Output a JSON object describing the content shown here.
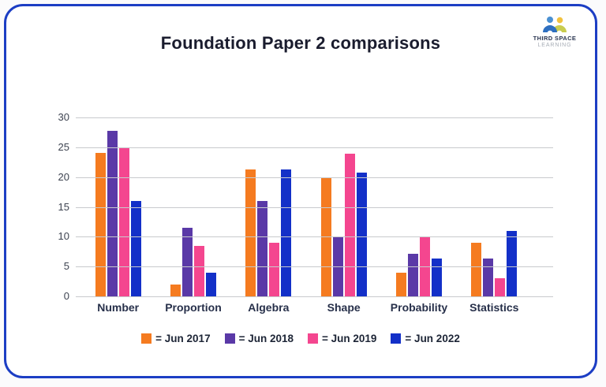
{
  "page": {
    "background": "#fbfbfc",
    "card_border_color": "#1c3ec4"
  },
  "header": {
    "title": "Foundation Paper 2 comparisons"
  },
  "logo": {
    "line1": "THIRD SPACE",
    "line2": "LEARNING",
    "person_left_head_color": "#4a90d2",
    "person_left_body_color": "#2e6fc0",
    "person_right_head_color": "#f2c23e",
    "person_right_body_color": "#c9cc4f"
  },
  "chart_data": {
    "type": "bar",
    "title": "Foundation Paper 2 comparisons",
    "categories": [
      "Number",
      "Proportion",
      "Algebra",
      "Shape",
      "Probability",
      "Statistics"
    ],
    "series": [
      {
        "name": "Jun 2017",
        "color": "#f57b20",
        "values": [
          24,
          2,
          21.3,
          20,
          4,
          9
        ]
      },
      {
        "name": "Jun 2018",
        "color": "#5a39a7",
        "values": [
          27.7,
          11.5,
          16,
          10,
          7.2,
          6.3
        ]
      },
      {
        "name": "Jun 2019",
        "color": "#f4468f",
        "values": [
          25,
          8.5,
          9,
          23.9,
          10,
          3
        ]
      },
      {
        "name": "Jun 2022",
        "color": "#1330c8",
        "values": [
          16,
          4,
          21.3,
          20.8,
          6.3,
          11
        ]
      }
    ],
    "ylim": [
      0,
      30
    ],
    "yticks": [
      30,
      25,
      20,
      15,
      10,
      5,
      0
    ],
    "grid": true,
    "legend_position": "bottom",
    "xlabel": "",
    "ylabel": ""
  },
  "legend": {
    "items": [
      {
        "label": "= Jun 2017",
        "color": "#f57b20"
      },
      {
        "label": "= Jun 2018",
        "color": "#5a39a7"
      },
      {
        "label": "= Jun 2019",
        "color": "#f4468f"
      },
      {
        "label": "= Jun 2022",
        "color": "#1330c8"
      }
    ]
  }
}
